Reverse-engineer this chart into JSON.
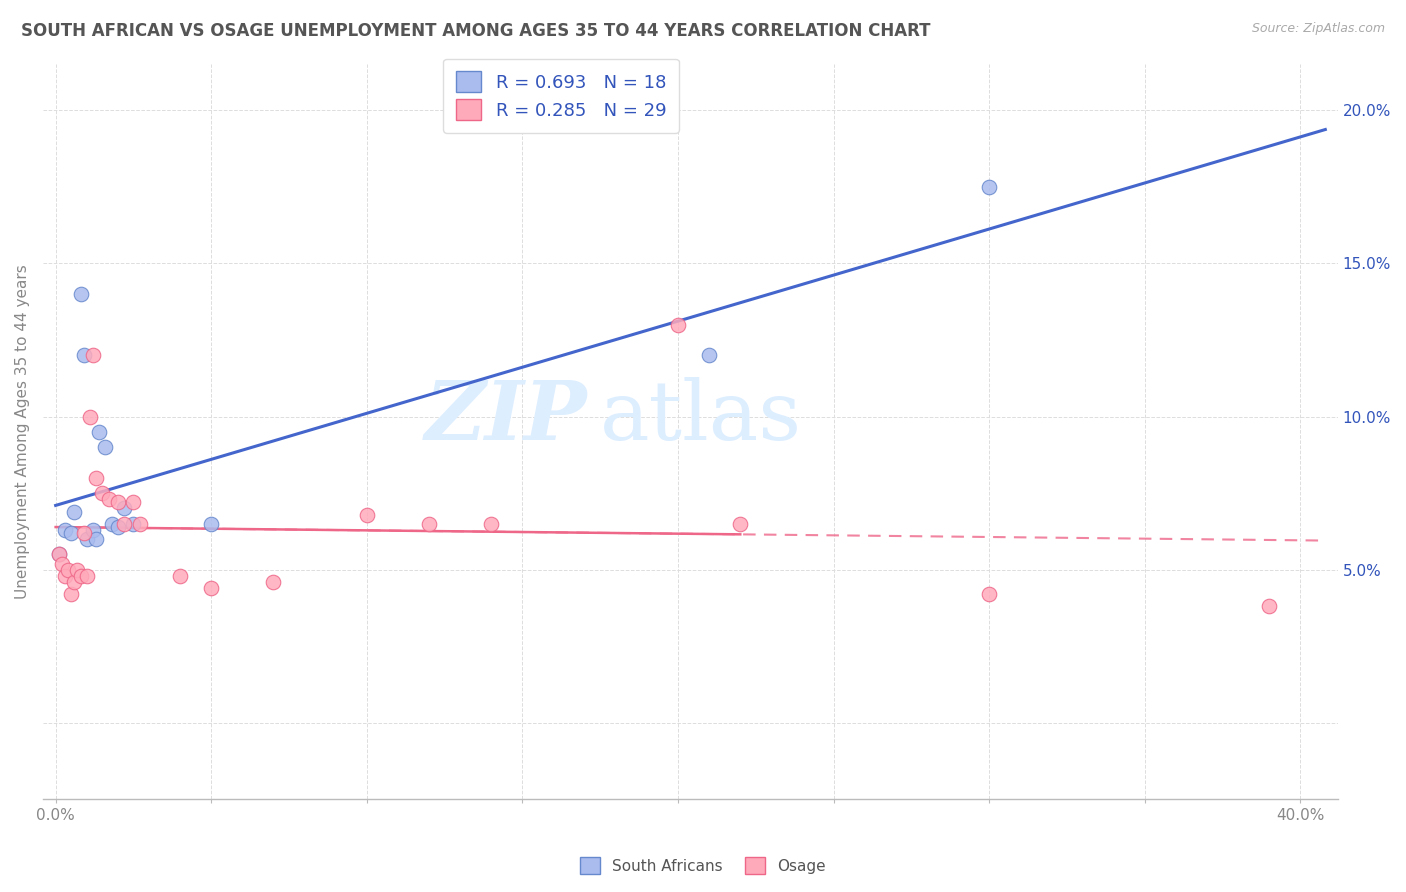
{
  "title": "SOUTH AFRICAN VS OSAGE UNEMPLOYMENT AMONG AGES 35 TO 44 YEARS CORRELATION CHART",
  "source": "Source: ZipAtlas.com",
  "ylabel": "Unemployment Among Ages 35 to 44 years",
  "xlim": [
    -0.004,
    0.412
  ],
  "ylim": [
    -0.025,
    0.215
  ],
  "legend1_r": "0.693",
  "legend1_n": "18",
  "legend2_r": "0.285",
  "legend2_n": "29",
  "blue_scatter_color": "#aabbee",
  "blue_edge_color": "#6688cc",
  "pink_scatter_color": "#ffaabb",
  "pink_edge_color": "#ee6688",
  "blue_line_color": "#4466cc",
  "pink_line_color": "#ee6688",
  "south_african_x": [
    0.001,
    0.003,
    0.005,
    0.006,
    0.008,
    0.009,
    0.01,
    0.012,
    0.013,
    0.014,
    0.016,
    0.018,
    0.02,
    0.022,
    0.025,
    0.05,
    0.21,
    0.3
  ],
  "south_african_y": [
    0.055,
    0.063,
    0.062,
    0.069,
    0.14,
    0.12,
    0.06,
    0.063,
    0.06,
    0.095,
    0.09,
    0.065,
    0.064,
    0.07,
    0.065,
    0.065,
    0.12,
    0.175
  ],
  "osage_x": [
    0.001,
    0.002,
    0.003,
    0.004,
    0.005,
    0.006,
    0.007,
    0.008,
    0.009,
    0.01,
    0.011,
    0.012,
    0.013,
    0.015,
    0.017,
    0.02,
    0.022,
    0.025,
    0.027,
    0.04,
    0.05,
    0.07,
    0.1,
    0.12,
    0.14,
    0.2,
    0.22,
    0.3,
    0.39
  ],
  "osage_y": [
    0.055,
    0.052,
    0.048,
    0.05,
    0.042,
    0.046,
    0.05,
    0.048,
    0.062,
    0.048,
    0.1,
    0.12,
    0.08,
    0.075,
    0.073,
    0.072,
    0.065,
    0.072,
    0.065,
    0.048,
    0.044,
    0.046,
    0.068,
    0.065,
    0.065,
    0.13,
    0.065,
    0.042,
    0.038
  ],
  "background_color": "#ffffff",
  "grid_color": "#dddddd",
  "watermark_color": "#ddeeff",
  "legend_text_color": "#3355bb",
  "ytick_label_color": "#3355bb",
  "xtick_label_color": "#888888",
  "ylabel_color": "#888888",
  "source_color": "#aaaaaa",
  "title_color": "#555555"
}
